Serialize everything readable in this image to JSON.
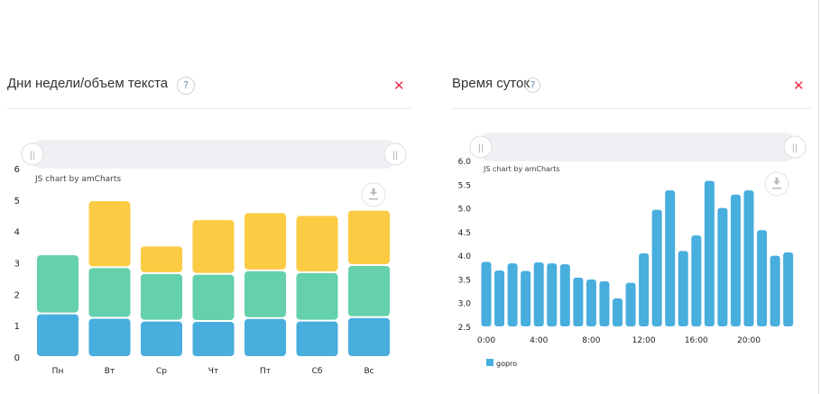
{
  "panels": [
    {
      "title": "Дни недели/объем текста",
      "help": "?",
      "close": "✕"
    },
    {
      "title": "Время суток",
      "help": "?",
      "close": "✕"
    }
  ],
  "credit": "JS chart by amCharts",
  "icons": {
    "download": "download-icon",
    "handle": "scrollbar-grip-icon"
  },
  "chart_data": [
    {
      "type": "bar",
      "stacked": true,
      "categories": [
        "Пн",
        "Вт",
        "Ср",
        "Чт",
        "Пт",
        "Сб",
        "Вс"
      ],
      "series": [
        {
          "color": "#47aedd",
          "values": [
            1.39,
            1.25,
            1.16,
            1.15,
            1.24,
            1.16,
            1.27
          ]
        },
        {
          "color": "#64d0ac",
          "values": [
            1.88,
            1.61,
            1.51,
            1.5,
            1.52,
            1.54,
            1.66
          ]
        },
        {
          "color": "#fbcb43",
          "values": [
            0,
            2.13,
            0.88,
            1.74,
            1.85,
            1.82,
            1.76
          ]
        }
      ],
      "ylim": [
        0,
        6
      ],
      "yticks": [
        0,
        1,
        2,
        3,
        4,
        5,
        6
      ],
      "grid": false
    },
    {
      "type": "bar",
      "x": [
        "0:00",
        "1:00",
        "2:00",
        "3:00",
        "4:00",
        "5:00",
        "6:00",
        "7:00",
        "8:00",
        "9:00",
        "10:00",
        "11:00",
        "12:00",
        "13:00",
        "14:00",
        "15:00",
        "16:00",
        "17:00",
        "18:00",
        "19:00",
        "20:00",
        "21:00",
        "22:00",
        "23:00"
      ],
      "xticks": [
        "0:00",
        "4:00",
        "8:00",
        "12:00",
        "16:00",
        "20:00"
      ],
      "series": [
        {
          "name": "gopro",
          "color": "#47aedd",
          "values": [
            3.86,
            3.68,
            3.83,
            3.67,
            3.85,
            3.83,
            3.81,
            3.53,
            3.49,
            3.45,
            3.09,
            3.42,
            4.04,
            4.96,
            5.37,
            4.09,
            4.42,
            5.57,
            5.0,
            5.28,
            5.37,
            4.53,
            3.99,
            4.06
          ]
        }
      ],
      "ylim": [
        2.5,
        6.0
      ],
      "yticks": [
        "2.5",
        "3.0",
        "3.5",
        "4.0",
        "4.5",
        "5.0",
        "5.5",
        "6.0"
      ],
      "legend": "bottom-left",
      "grid": false
    }
  ]
}
